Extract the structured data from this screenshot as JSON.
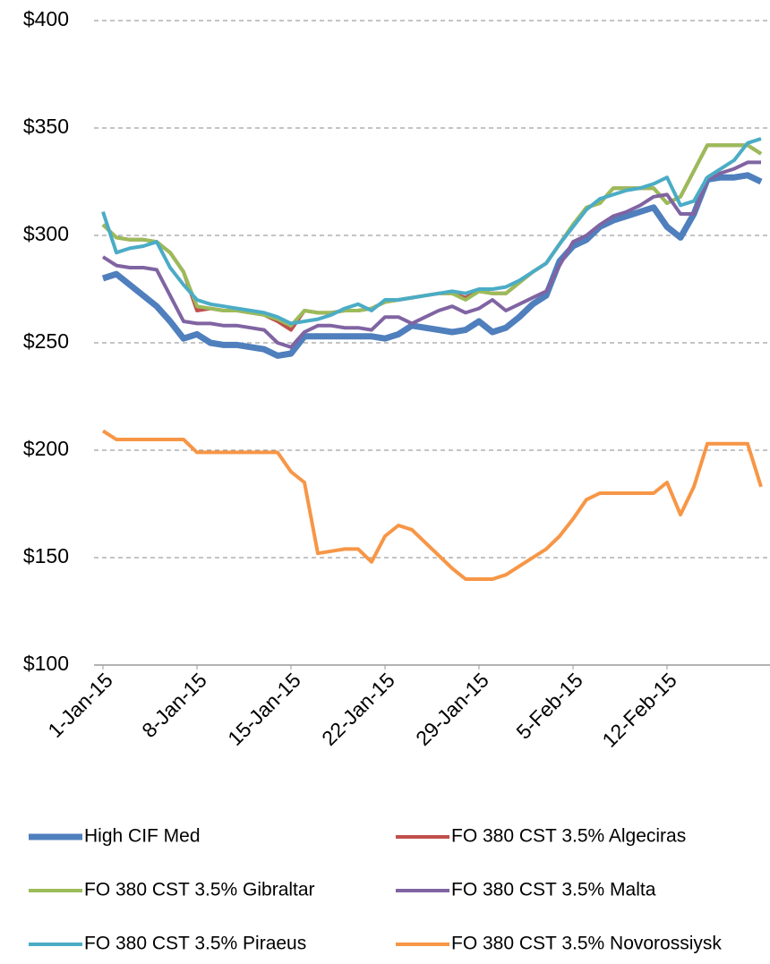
{
  "chart_data": {
    "type": "line",
    "categories": [
      "1-Jan-15",
      null,
      null,
      null,
      null,
      null,
      null,
      "8-Jan-15",
      null,
      null,
      null,
      null,
      null,
      null,
      "15-Jan-15",
      null,
      null,
      null,
      null,
      null,
      null,
      "22-Jan-15",
      null,
      null,
      null,
      null,
      null,
      null,
      "29-Jan-15",
      null,
      null,
      null,
      null,
      null,
      null,
      "5-Feb-15",
      null,
      null,
      null,
      null,
      null,
      null,
      "12-Feb-15",
      null,
      null,
      null,
      null,
      null,
      null,
      null
    ],
    "series": [
      {
        "name": "High CIF Med",
        "color": "#4f7fbd",
        "values": [
          280,
          282,
          277,
          272,
          267,
          260,
          252,
          254,
          250,
          249,
          249,
          248,
          247,
          244,
          245,
          253,
          253,
          253,
          253,
          253,
          253,
          252,
          254,
          258,
          257,
          256,
          255,
          256,
          260,
          255,
          257,
          262,
          268,
          272,
          288,
          295,
          298,
          304,
          307,
          309,
          311,
          313,
          304,
          299,
          310,
          326,
          327,
          327,
          328,
          325
        ]
      },
      {
        "name": "FO 380 CST 3.5% Algeciras",
        "color": "#c0504d",
        "values": [
          305,
          299,
          298,
          298,
          297,
          292,
          283,
          265,
          266,
          265,
          265,
          264,
          263,
          260,
          256,
          265,
          264,
          264,
          265,
          265,
          266,
          269,
          270,
          271,
          272,
          273,
          273,
          271,
          274,
          273,
          273,
          278,
          283,
          287,
          296,
          305,
          313,
          315,
          322,
          322,
          322,
          322,
          315,
          318,
          330,
          342,
          342,
          342,
          342,
          338
        ]
      },
      {
        "name": "FO 380 CST 3.5% Gibraltar",
        "color": "#9bbb59",
        "values": [
          305,
          299,
          298,
          298,
          297,
          292,
          283,
          267,
          266,
          265,
          265,
          264,
          263,
          261,
          258,
          265,
          264,
          264,
          265,
          265,
          266,
          269,
          270,
          271,
          272,
          273,
          273,
          270,
          274,
          273,
          273,
          278,
          283,
          287,
          296,
          305,
          313,
          315,
          322,
          322,
          322,
          322,
          315,
          318,
          330,
          342,
          342,
          342,
          342,
          338
        ]
      },
      {
        "name": "FO 380 CST 3.5% Malta",
        "color": "#8064a2",
        "values": [
          290,
          286,
          285,
          285,
          284,
          272,
          260,
          259,
          259,
          258,
          258,
          257,
          256,
          250,
          248,
          255,
          258,
          258,
          257,
          257,
          256,
          262,
          262,
          259,
          262,
          265,
          267,
          264,
          266,
          270,
          265,
          268,
          271,
          274,
          286,
          297,
          300,
          305,
          309,
          311,
          314,
          318,
          319,
          310,
          310,
          326,
          329,
          331,
          334,
          334
        ]
      },
      {
        "name": "FO 380 CST 3.5% Piraeus",
        "color": "#4bacc6",
        "values": [
          311,
          292,
          294,
          295,
          297,
          285,
          277,
          270,
          268,
          267,
          266,
          265,
          264,
          262,
          259,
          260,
          261,
          263,
          266,
          268,
          265,
          270,
          270,
          271,
          272,
          273,
          274,
          273,
          275,
          275,
          276,
          279,
          283,
          287,
          296,
          304,
          312,
          317,
          319,
          321,
          322,
          324,
          327,
          314,
          316,
          327,
          331,
          335,
          343,
          345
        ]
      },
      {
        "name": "FO 380 CST 3.5% Novorossiysk",
        "color": "#f79646",
        "values": [
          209,
          205,
          205,
          205,
          205,
          205,
          205,
          199,
          199,
          199,
          199,
          199,
          199,
          199,
          190,
          185,
          152,
          153,
          154,
          154,
          148,
          160,
          165,
          163,
          157,
          151,
          145,
          140,
          140,
          140,
          142,
          146,
          150,
          154,
          160,
          168,
          177,
          180,
          180,
          180,
          180,
          180,
          185,
          170,
          183,
          203,
          203,
          203,
          203,
          183
        ]
      }
    ],
    "ylim": [
      100,
      400
    ],
    "yticks": [
      {
        "value": 100,
        "label": "$100"
      },
      {
        "value": 150,
        "label": "$150"
      },
      {
        "value": 200,
        "label": "$200"
      },
      {
        "value": 250,
        "label": "$250"
      },
      {
        "value": 300,
        "label": "$300"
      },
      {
        "value": 350,
        "label": "$350"
      },
      {
        "value": 400,
        "label": "$400"
      }
    ],
    "grid": true,
    "legend": "bottom"
  }
}
